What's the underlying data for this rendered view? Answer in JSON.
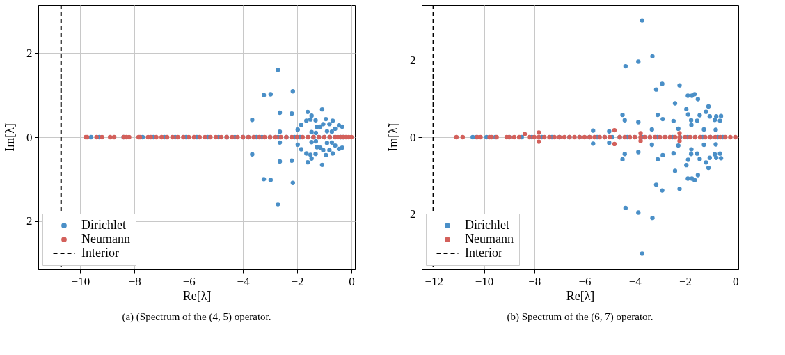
{
  "chart_data": [
    {
      "type": "scatter",
      "xlabel": "Re[λ̃]",
      "ylabel": "Im[λ̃]",
      "annotations": [
        "(a) (Spectrum of the (4, 5) operator."
      ],
      "xlim": [
        -11.55,
        0.13
      ],
      "ylim": [
        -3.15,
        3.15
      ],
      "xticks": [
        -10,
        -8,
        -6,
        -4,
        -2,
        0
      ],
      "yticks": [
        -2,
        0,
        2
      ],
      "grid": true,
      "legend": "bottom left",
      "marker": "circle",
      "series": [
        {
          "name": "Dirichlet",
          "color": "#4a8fc7",
          "x": [
            -9.6,
            -9.3,
            -8.4,
            -7.7,
            -7.3,
            -6.9,
            -6.5,
            -6.1,
            -5.7,
            -5.3,
            -4.9,
            -4.6,
            -4.3,
            -4.0,
            -3.8,
            -3.5,
            -3.3,
            -3.0,
            -2.7,
            -2.4,
            -2.1,
            -1.9,
            -1.6,
            -1.4,
            -1.2,
            -1.0,
            -0.8,
            -0.6,
            -0.4,
            -0.3,
            -2.71,
            -3.23,
            -2.98,
            -2.16,
            -2.64,
            -2.2,
            -3.66,
            -1.61,
            -1.47,
            -1.08,
            -1.66,
            -1.51,
            -1.32,
            -1.85,
            -1.98,
            -1.27,
            -1.15,
            -1.04,
            -0.94,
            -0.69,
            -0.81,
            -0.46,
            -0.34,
            -0.6,
            -1.47,
            -1.31,
            -2.64,
            -0.9,
            -0.72,
            -2.71,
            -3.23,
            -2.98,
            -2.16,
            -2.64,
            -2.2,
            -3.66,
            -1.61,
            -1.47,
            -1.08,
            -1.66,
            -1.51,
            -1.32,
            -1.85,
            -1.98,
            -1.27,
            -1.15,
            -1.04,
            -0.94,
            -0.69,
            -0.81,
            -0.46,
            -0.34,
            -0.6,
            -1.47,
            -1.31,
            -2.64,
            -0.9,
            -0.72
          ],
          "values": [
            0,
            0,
            0,
            0,
            0,
            0,
            0,
            0,
            0,
            0,
            0,
            0,
            0,
            0,
            0,
            0,
            0,
            0,
            0,
            0,
            0,
            0,
            0,
            0,
            0,
            0,
            0,
            0,
            0,
            0,
            1.6,
            1.0,
            1.02,
            1.09,
            0.58,
            0.56,
            0.41,
            0.6,
            0.51,
            0.66,
            0.39,
            0.42,
            0.4,
            0.29,
            0.18,
            0.24,
            0.25,
            0.31,
            0.43,
            0.39,
            0.31,
            0.28,
            0.25,
            0.2,
            0.12,
            0.1,
            0.13,
            0.14,
            0.13,
            -1.6,
            -1.0,
            -1.02,
            -1.09,
            -0.58,
            -0.56,
            -0.41,
            -0.6,
            -0.51,
            -0.66,
            -0.39,
            -0.42,
            -0.4,
            -0.29,
            -0.18,
            -0.24,
            -0.25,
            -0.31,
            -0.43,
            -0.39,
            -0.31,
            -0.28,
            -0.25,
            -0.2,
            -0.12,
            -0.1,
            -0.13,
            -0.14,
            -0.13
          ]
        },
        {
          "name": "Neumann",
          "color": "#d3605b",
          "x": [
            -9.8,
            -9.75,
            -9.4,
            -9.2,
            -8.9,
            -8.75,
            -8.4,
            -8.3,
            -8.2,
            -7.85,
            -7.8,
            -7.5,
            -7.4,
            -7.2,
            -7.0,
            -6.8,
            -6.6,
            -6.4,
            -6.2,
            -6.0,
            -5.8,
            -5.6,
            -5.4,
            -5.2,
            -5.0,
            -4.8,
            -4.6,
            -4.4,
            -4.2,
            -4.0,
            -3.8,
            -3.6,
            -3.4,
            -3.2,
            -3.0,
            -2.8,
            -2.6,
            -2.4,
            -2.2,
            -2.0,
            -1.8,
            -1.6,
            -1.4,
            -1.2,
            -1.0,
            -0.8,
            -0.6,
            -0.5,
            -0.4,
            -0.3,
            -0.2,
            -0.1,
            0.0
          ],
          "values": [
            0,
            0,
            0,
            0,
            0,
            0,
            0,
            0,
            0,
            0,
            0,
            0,
            0,
            0,
            0,
            0,
            0,
            0,
            0,
            0,
            0,
            0,
            0,
            0,
            0,
            0,
            0,
            0,
            0,
            0,
            0,
            0,
            0,
            0,
            0,
            0,
            0,
            0,
            0,
            0,
            0,
            0,
            0,
            0,
            0,
            0,
            0,
            0,
            0,
            0,
            0,
            0,
            0
          ]
        }
      ],
      "ref_lines": [
        {
          "axis": "x",
          "value": -10.71,
          "label": "Interior",
          "color": "#000000",
          "line_style": "dashed"
        }
      ]
    },
    {
      "type": "scatter",
      "xlabel": "Re[λ̃]",
      "ylabel": "Im[λ̃]",
      "annotations": [
        "(b) Spectrum of the (6, 7) operator."
      ],
      "xlim": [
        -12.48,
        0.12
      ],
      "ylim": [
        -3.45,
        3.45
      ],
      "xticks": [
        -12,
        -10,
        -8,
        -6,
        -4,
        -2,
        0
      ],
      "yticks": [
        -2,
        0,
        2
      ],
      "grid": true,
      "legend": "bottom left",
      "marker": "circle",
      "series": [
        {
          "name": "Dirichlet",
          "color": "#4a8fc7",
          "x": [
            -10.45,
            -10.3,
            -9.9,
            -9.55,
            -9.0,
            -8.5,
            -8.1,
            -7.7,
            -7.3,
            -7.0,
            -6.6,
            -6.2,
            -5.8,
            -5.5,
            -5.2,
            -4.9,
            -4.6,
            -4.3,
            -4.0,
            -3.7,
            -3.4,
            -3.1,
            -2.8,
            -2.5,
            -2.2,
            -1.9,
            -1.6,
            -1.3,
            -1.0,
            -0.7,
            -0.5,
            -3.71,
            -3.3,
            -3.86,
            -4.37,
            -2.91,
            -3.15,
            -2.22,
            -1.89,
            -1.73,
            -1.62,
            -1.49,
            -2.4,
            -1.95,
            -1.07,
            -1.17,
            -1.42,
            -1.88,
            -3.09,
            -2.89,
            -2.46,
            -1.76,
            -1.52,
            -1.02,
            -0.82,
            -0.61,
            -0.76,
            -0.57,
            -4.49,
            -4.4,
            -3.86,
            -3.32,
            -2.27,
            -1.25,
            -0.78,
            -1.75,
            -5.66,
            -5.02,
            -3.71,
            -3.3,
            -3.86,
            -4.37,
            -2.91,
            -3.15,
            -2.22,
            -1.89,
            -1.73,
            -1.62,
            -1.49,
            -2.4,
            -1.95,
            -1.07,
            -1.17,
            -1.42,
            -1.88,
            -3.09,
            -2.89,
            -2.46,
            -1.76,
            -1.52,
            -1.02,
            -0.82,
            -0.61,
            -0.76,
            -0.57,
            -4.49,
            -4.4,
            -3.86,
            -3.32,
            -2.27,
            -1.25,
            -0.78,
            -1.75,
            -5.66,
            -5.02
          ],
          "values": [
            0,
            0,
            0,
            0,
            0,
            0,
            0,
            0,
            0,
            0,
            0,
            0,
            0,
            0,
            0,
            0,
            0,
            0,
            0,
            0,
            0,
            0,
            0,
            0,
            0,
            0,
            0,
            0,
            0,
            0,
            0,
            3.04,
            2.11,
            1.97,
            1.85,
            1.39,
            1.24,
            1.35,
            1.08,
            1.08,
            1.12,
            0.99,
            0.88,
            0.73,
            0.8,
            0.66,
            0.57,
            0.59,
            0.58,
            0.47,
            0.42,
            0.44,
            0.43,
            0.54,
            0.45,
            0.43,
            0.54,
            0.55,
            0.58,
            0.44,
            0.39,
            0.2,
            0.22,
            0.2,
            0.19,
            0.32,
            0.17,
            0.15,
            -3.04,
            -2.11,
            -1.97,
            -1.85,
            -1.39,
            -1.24,
            -1.35,
            -1.08,
            -1.08,
            -1.12,
            -0.99,
            -0.88,
            -0.73,
            -0.8,
            -0.66,
            -0.57,
            -0.59,
            -0.58,
            -0.47,
            -0.42,
            -0.44,
            -0.43,
            -0.54,
            -0.45,
            -0.43,
            -0.54,
            -0.55,
            -0.58,
            -0.44,
            -0.39,
            -0.2,
            -0.22,
            -0.2,
            -0.19,
            -0.32,
            -0.17,
            -0.15
          ]
        },
        {
          "name": "Neumann",
          "color": "#d3605b",
          "x": [
            -11.1,
            -10.85,
            -10.27,
            -10.14,
            -9.78,
            -9.7,
            -9.5,
            -9.1,
            -9.0,
            -8.8,
            -8.6,
            -8.38,
            -8.2,
            -8.0,
            -7.82,
            -7.82,
            -7.82,
            -7.6,
            -7.4,
            -7.2,
            -7.0,
            -6.8,
            -6.6,
            -6.4,
            -6.2,
            -6.0,
            -5.8,
            -5.6,
            -5.4,
            -5.2,
            -5.0,
            -4.81,
            -4.81,
            -4.6,
            -4.4,
            -4.2,
            -4.0,
            -3.77,
            -3.77,
            -3.77,
            -3.6,
            -3.4,
            -3.2,
            -3.0,
            -2.8,
            -2.6,
            -2.4,
            -2.22,
            -2.22,
            -2.22,
            -2.0,
            -1.8,
            -1.6,
            -1.4,
            -1.2,
            -1.0,
            -0.8,
            -0.6,
            -0.4,
            -0.2,
            0.0
          ],
          "values": [
            0,
            0,
            0,
            0,
            0,
            0,
            0,
            0,
            0,
            0,
            0,
            0.08,
            0,
            0,
            0,
            0.12,
            -0.12,
            0,
            0,
            0,
            0,
            0,
            0,
            0,
            0,
            0,
            0,
            0,
            0,
            0,
            0,
            0.18,
            -0.18,
            0,
            0,
            0,
            0,
            0,
            0.1,
            -0.1,
            0,
            0,
            0,
            0,
            0,
            0,
            0,
            0,
            0.1,
            -0.1,
            0,
            0,
            0,
            0,
            0,
            0,
            0,
            0,
            0,
            0,
            0
          ]
        }
      ],
      "ref_lines": [
        {
          "axis": "x",
          "value": -12.02,
          "label": "Interior",
          "color": "#000000",
          "line_style": "dashed"
        }
      ]
    }
  ]
}
